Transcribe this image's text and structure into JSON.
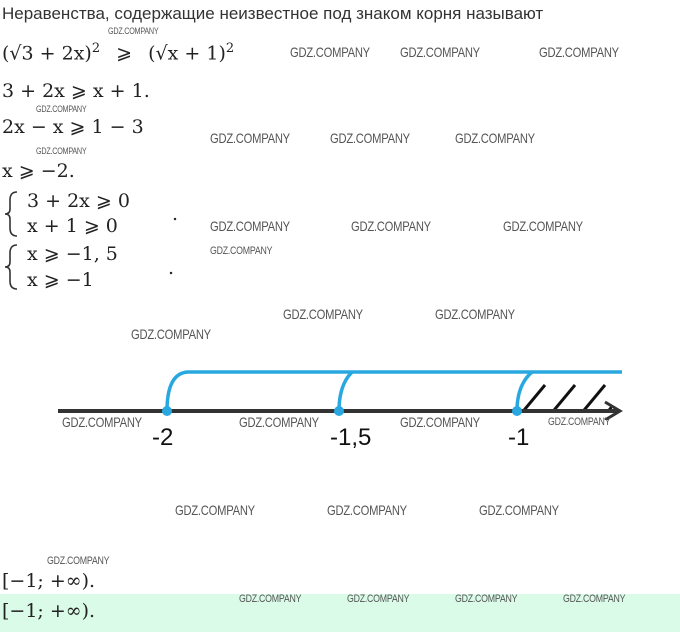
{
  "title": "Неравенства, содержащие неизвестное под знаком корня называют",
  "watermark": "GDZ.COMPANY",
  "lines": {
    "l1_left": "(√3 + 2x)",
    "l1_exp": "2",
    "l1_rel": "⩾",
    "l1_right": "(√x + 1)",
    "l1_exp2": "2",
    "l2": "3 + 2x  ⩾  x + 1.",
    "l3": "2x − x  ⩾  1 − 3",
    "l4": "x  ⩾  −2."
  },
  "system1": {
    "rows": [
      "3 + 2x  ⩾  0",
      "x + 1  ⩾  0"
    ],
    "end": "."
  },
  "system2": {
    "rows": [
      "x  ⩾  −1, 5",
      "x  ⩾  −1"
    ],
    "end": "."
  },
  "number_line": {
    "points": [
      {
        "label": "-2"
      },
      {
        "label": "-1,5"
      },
      {
        "label": "-1"
      }
    ],
    "accent_color": "#29a8e0",
    "solution_from": "-1"
  },
  "answer": "[−1;  +∞).",
  "answer_highlight": "[−1;  +∞).",
  "highlight_color": "#dbfbe9"
}
